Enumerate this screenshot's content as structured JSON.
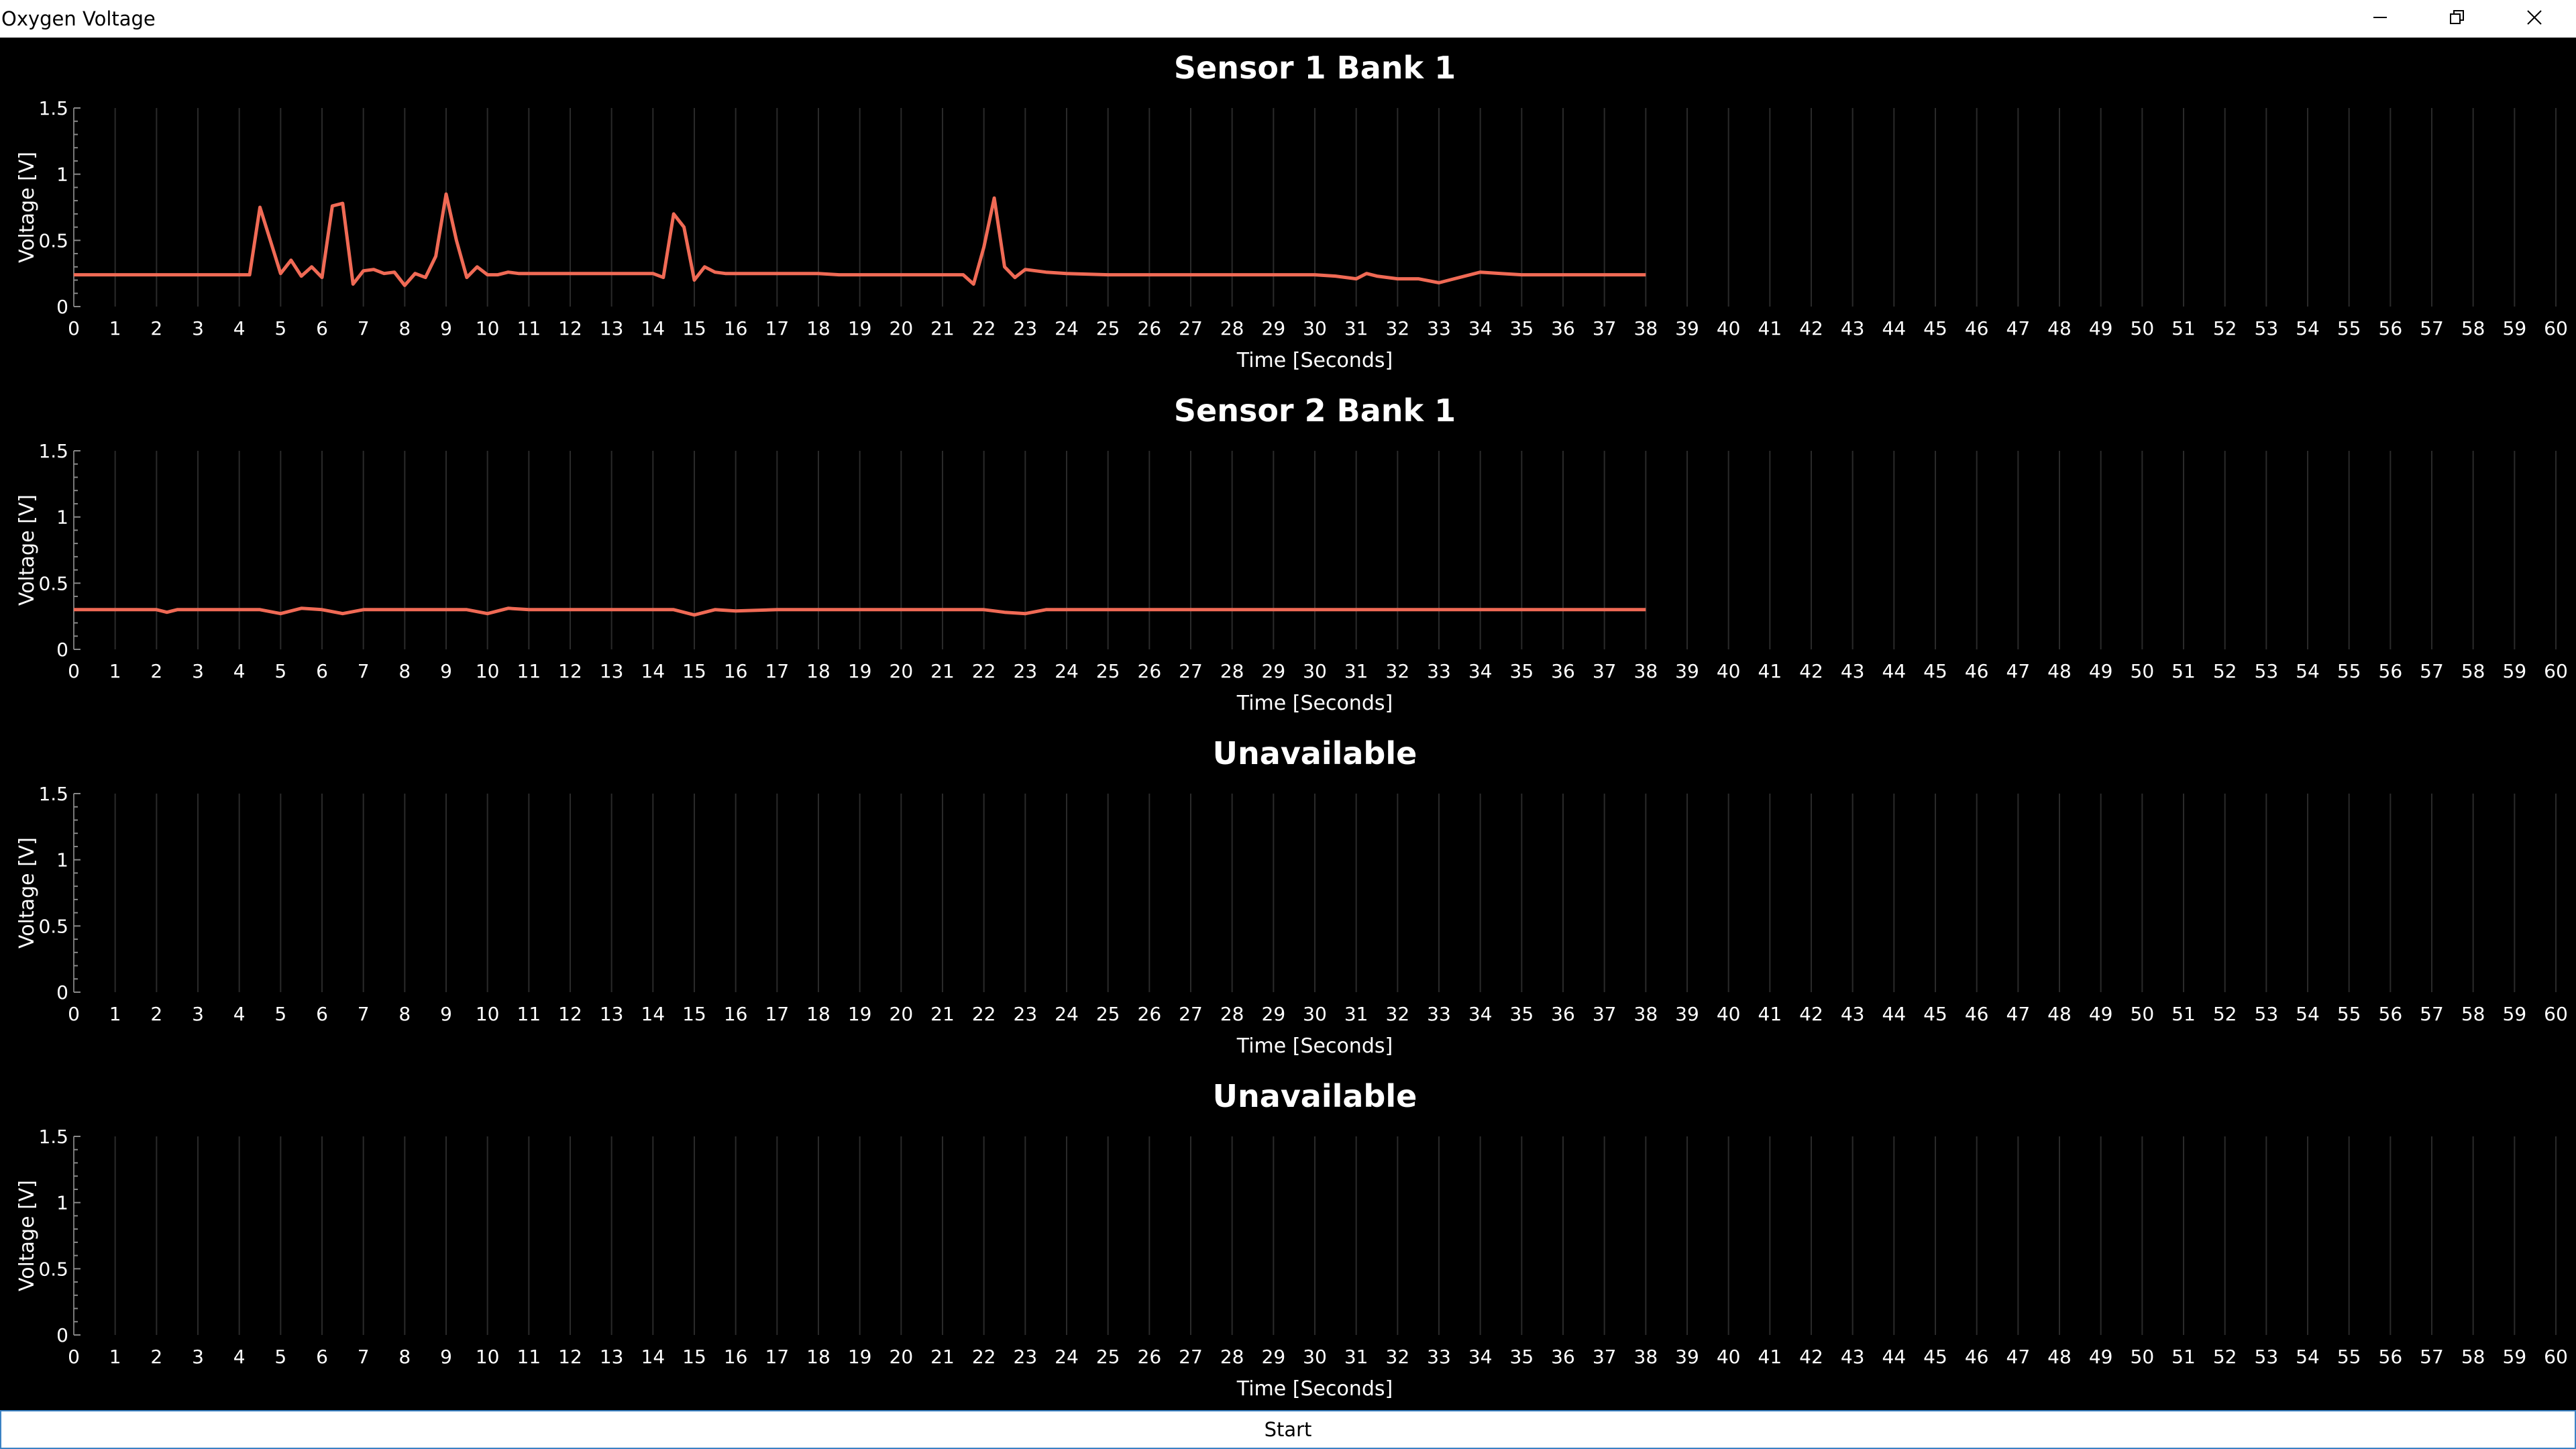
{
  "window": {
    "title": "Oxygen Voltage",
    "controls": [
      "minimize-icon",
      "restore-icon",
      "close-icon"
    ]
  },
  "start_button": {
    "label": "Start"
  },
  "colors": {
    "background": "#000000",
    "series": "#f06a55",
    "grid": "#2a2a2a",
    "text": "#ffffff"
  },
  "chart_data": [
    {
      "type": "line",
      "title": "Sensor 1 Bank 1",
      "xlabel": "Time [Seconds]",
      "ylabel": "Voltage [V]",
      "xlim": [
        0,
        60
      ],
      "ylim": [
        0,
        1.5
      ],
      "yticks": [
        "0",
        "0.5",
        "1",
        "1.5"
      ],
      "grid": "vertical",
      "series": [
        {
          "x": [
            0,
            0.5,
            1,
            1.5,
            2,
            2.5,
            3,
            3.5,
            4,
            4.25,
            4.5,
            4.75,
            5,
            5.25,
            5.5,
            5.75,
            6,
            6.25,
            6.5,
            6.75,
            7,
            7.25,
            7.5,
            7.75,
            8,
            8.25,
            8.5,
            8.75,
            9,
            9.25,
            9.5,
            9.75,
            10,
            10.25,
            10.5,
            10.75,
            11,
            11.5,
            12,
            12.5,
            13,
            13.5,
            14,
            14.25,
            14.5,
            14.75,
            15,
            15.25,
            15.5,
            15.75,
            16,
            16.5,
            17,
            17.5,
            18,
            18.5,
            19,
            19.5,
            20,
            20.5,
            21,
            21.5,
            21.75,
            22,
            22.25,
            22.5,
            22.75,
            23,
            23.5,
            24,
            25,
            26,
            27,
            28,
            29,
            30,
            30.5,
            31,
            31.25,
            31.5,
            32,
            32.5,
            33,
            33.25,
            33.5,
            34,
            34.5,
            35,
            36,
            37,
            38
          ],
          "y": [
            0.24,
            0.24,
            0.24,
            0.24,
            0.24,
            0.24,
            0.24,
            0.24,
            0.24,
            0.24,
            0.75,
            0.5,
            0.25,
            0.35,
            0.23,
            0.3,
            0.22,
            0.76,
            0.78,
            0.17,
            0.27,
            0.28,
            0.25,
            0.26,
            0.16,
            0.25,
            0.22,
            0.38,
            0.85,
            0.5,
            0.22,
            0.3,
            0.24,
            0.24,
            0.26,
            0.25,
            0.25,
            0.25,
            0.25,
            0.25,
            0.25,
            0.25,
            0.25,
            0.22,
            0.7,
            0.6,
            0.2,
            0.3,
            0.26,
            0.25,
            0.25,
            0.25,
            0.25,
            0.25,
            0.25,
            0.24,
            0.24,
            0.24,
            0.24,
            0.24,
            0.24,
            0.24,
            0.17,
            0.45,
            0.82,
            0.3,
            0.22,
            0.28,
            0.26,
            0.25,
            0.24,
            0.24,
            0.24,
            0.24,
            0.24,
            0.24,
            0.23,
            0.21,
            0.25,
            0.23,
            0.21,
            0.21,
            0.18,
            0.2,
            0.22,
            0.26,
            0.25,
            0.24,
            0.24,
            0.24,
            0.24
          ]
        }
      ]
    },
    {
      "type": "line",
      "title": "Sensor 2 Bank 1",
      "xlabel": "Time [Seconds]",
      "ylabel": "Voltage [V]",
      "xlim": [
        0,
        60
      ],
      "ylim": [
        0,
        1.5
      ],
      "yticks": [
        "0",
        "0.5",
        "1",
        "1.5"
      ],
      "grid": "vertical",
      "series": [
        {
          "x": [
            0,
            1,
            2,
            2.25,
            2.5,
            3,
            4,
            4.5,
            5,
            5.5,
            6,
            6.5,
            7,
            8,
            9,
            9.5,
            10,
            10.5,
            11,
            12,
            13,
            14,
            14.5,
            15,
            15.5,
            16,
            17,
            18,
            19,
            20,
            21,
            22,
            22.5,
            23,
            23.5,
            24,
            25,
            30,
            35,
            38
          ],
          "y": [
            0.3,
            0.3,
            0.3,
            0.28,
            0.3,
            0.3,
            0.3,
            0.3,
            0.27,
            0.31,
            0.3,
            0.27,
            0.3,
            0.3,
            0.3,
            0.3,
            0.27,
            0.31,
            0.3,
            0.3,
            0.3,
            0.3,
            0.3,
            0.26,
            0.3,
            0.29,
            0.3,
            0.3,
            0.3,
            0.3,
            0.3,
            0.3,
            0.28,
            0.27,
            0.3,
            0.3,
            0.3,
            0.3,
            0.3,
            0.3
          ]
        }
      ]
    },
    {
      "type": "line",
      "title": "Unavailable",
      "xlabel": "Time [Seconds]",
      "ylabel": "Voltage [V]",
      "xlim": [
        0,
        60
      ],
      "ylim": [
        0,
        1.5
      ],
      "yticks": [
        "0",
        "0.5",
        "1",
        "1.5"
      ],
      "grid": "vertical",
      "series": []
    },
    {
      "type": "line",
      "title": "Unavailable",
      "xlabel": "Time [Seconds]",
      "ylabel": "Voltage [V]",
      "xlim": [
        0,
        60
      ],
      "ylim": [
        0,
        1.5
      ],
      "yticks": [
        "0",
        "0.5",
        "1",
        "1.5"
      ],
      "grid": "vertical",
      "series": []
    }
  ]
}
